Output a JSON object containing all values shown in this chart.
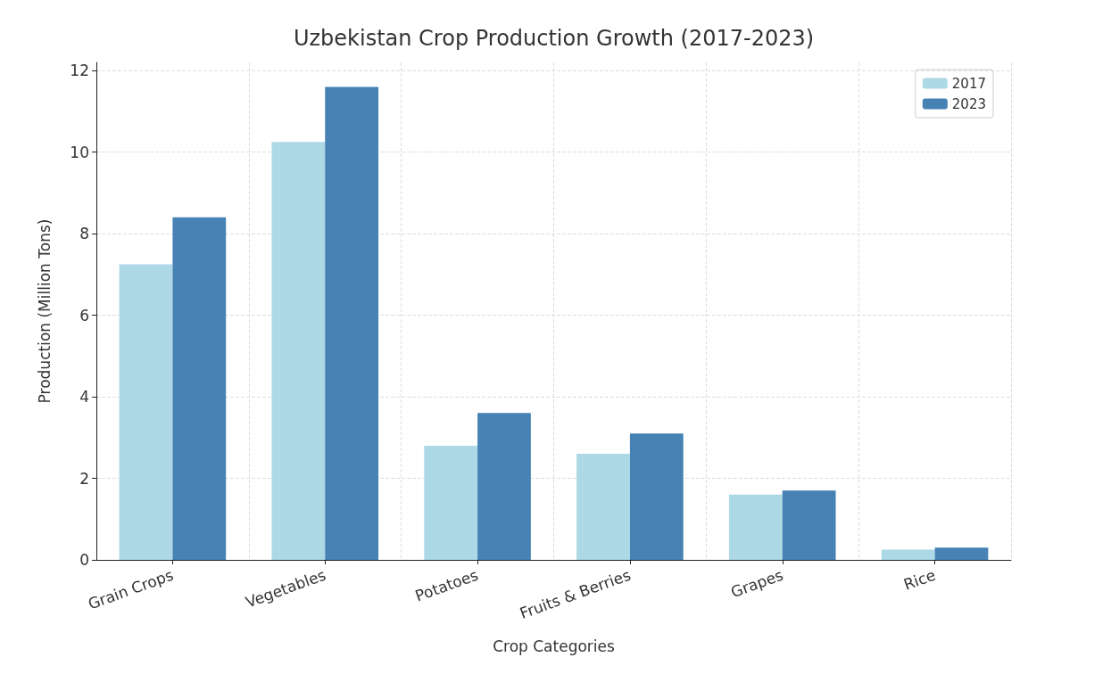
{
  "chart_data": {
    "type": "bar",
    "title": "Uzbekistan Crop Production Growth (2017-2023)",
    "xlabel": "Crop Categories",
    "ylabel": "Production (Million Tons)",
    "categories": [
      "Grain Crops",
      "Vegetables",
      "Potatoes",
      "Fruits & Berries",
      "Grapes",
      "Rice"
    ],
    "series": [
      {
        "name": "2017",
        "color": "#add8e6",
        "values": [
          7.25,
          10.25,
          2.8,
          2.6,
          1.6,
          0.25
        ]
      },
      {
        "name": "2023",
        "color": "#4682b4",
        "values": [
          8.4,
          11.6,
          3.6,
          3.1,
          1.7,
          0.3
        ]
      }
    ],
    "ylim": [
      0,
      12.2
    ],
    "yticks": [
      0,
      2,
      4,
      6,
      8,
      10,
      12
    ],
    "grid": true,
    "legend": "top right"
  }
}
